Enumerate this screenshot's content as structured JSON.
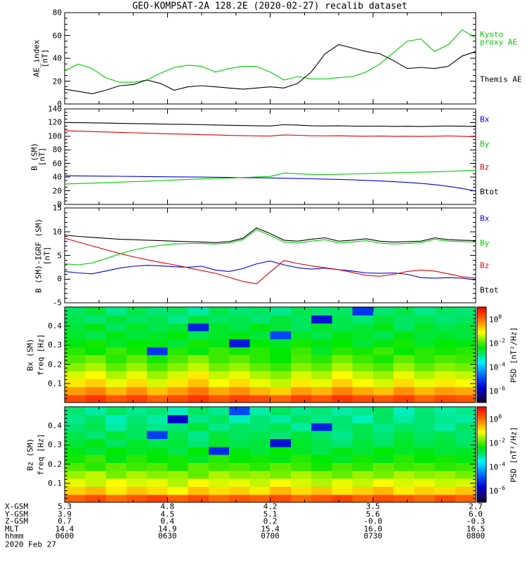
{
  "title": "GEO-KOMPSAT-2A 128.2E (2020-02-27) recalib dataset",
  "date_label": "2020 Feb 27",
  "colors": {
    "green": "#00cc00",
    "red": "#dd0000",
    "blue": "#0000dd",
    "black": "#000000",
    "background": "#ffffff"
  },
  "time_axis": {
    "tick_hours": [
      6,
      6.5,
      7,
      7.5,
      8
    ],
    "tick_labels": [
      "0600",
      "0630",
      "0700",
      "0730",
      "0800"
    ],
    "minor_step_hours": 0.16667
  },
  "bottom_axis": {
    "rows": [
      {
        "label": "X-GSM",
        "values": [
          "5.3",
          "4.8",
          "4.2",
          "3.5",
          "2.7"
        ]
      },
      {
        "label": "Y-GSM",
        "values": [
          "3.9",
          "4.5",
          "5.1",
          "5.6",
          "6.0"
        ]
      },
      {
        "label": "Z-GSM",
        "values": [
          "0.7",
          "0.4",
          "0.2",
          "-0.0",
          "-0.3"
        ]
      },
      {
        "label": "MLT",
        "values": [
          "14.4",
          "14.9",
          "15.4",
          "16.0",
          "16.5"
        ]
      }
    ],
    "hhmm_label": "hhmm",
    "hhmm_values": [
      "0600",
      "0630",
      "0700",
      "0730",
      "0800"
    ],
    "date": "2020 Feb 27"
  },
  "chart_data": [
    {
      "id": "ae-index",
      "type": "line",
      "ylabel_lines": [
        "AE_index",
        "[nT]"
      ],
      "ylim": [
        0,
        80
      ],
      "yticks": [
        0,
        20,
        40,
        60,
        80
      ],
      "yminor": 5,
      "xlim_hours": [
        6,
        8
      ],
      "series": [
        {
          "name": "Kyoto proxy AE",
          "color": "#00cc00",
          "values": [
            29,
            35,
            31,
            23,
            19,
            19,
            21,
            27,
            32,
            34,
            33,
            28,
            31,
            33,
            33,
            28,
            21,
            24,
            22,
            22,
            23,
            24,
            28,
            35,
            45,
            55,
            57,
            46,
            52,
            65,
            58
          ]
        },
        {
          "name": "Themis AE",
          "color": "#000000",
          "values": [
            13,
            11,
            9,
            12,
            16,
            17,
            21,
            18,
            12,
            15,
            16,
            15,
            14,
            13,
            14,
            15,
            14,
            18,
            28,
            44,
            52,
            49,
            46,
            44,
            38,
            31,
            32,
            31,
            33,
            42,
            46
          ]
        }
      ],
      "legend": [
        {
          "lines": [
            "Kyoto",
            "proxy AE"
          ],
          "color": "#00cc00"
        },
        {
          "lines": [
            "Themis AE"
          ],
          "color": "#000000"
        }
      ]
    },
    {
      "id": "b-sm",
      "type": "line",
      "ylabel_lines": [
        "B (SM)",
        "[nT]"
      ],
      "ylim": [
        0,
        140
      ],
      "yticks": [
        0,
        20,
        40,
        60,
        80,
        100,
        120,
        140
      ],
      "yminor": 5,
      "xlim_hours": [
        6,
        8
      ],
      "series": [
        {
          "name": "Bx",
          "color": "#0000dd",
          "values": [
            42,
            41.8,
            41.6,
            41.4,
            41.2,
            41,
            40.8,
            40.6,
            40.4,
            40.2,
            40,
            39.8,
            39.5,
            39.2,
            39,
            38.8,
            38.4,
            38,
            37.6,
            37.2,
            36.6,
            36,
            35.2,
            34.4,
            33.4,
            32.2,
            30.8,
            29,
            26.5,
            23.5,
            19.5
          ]
        },
        {
          "name": "By",
          "color": "#00cc00",
          "values": [
            30,
            30.6,
            31.2,
            31.8,
            32.6,
            33.4,
            34.2,
            35,
            35.8,
            36.6,
            37.4,
            38,
            38.6,
            39.4,
            40.2,
            41,
            46,
            45,
            44,
            43.8,
            44.2,
            44.8,
            45.2,
            45.8,
            46.2,
            46.8,
            47.2,
            47.8,
            48.4,
            49.2,
            50
          ]
        },
        {
          "name": "Bz",
          "color": "#dd0000",
          "values": [
            108,
            107.4,
            106.8,
            106.2,
            105.6,
            105,
            104.4,
            103.8,
            103.2,
            102.8,
            102.2,
            101.8,
            101.2,
            100.8,
            100.4,
            100.2,
            101.8,
            101.4,
            100.6,
            100.4,
            100.6,
            100.2,
            100,
            100.2,
            99.8,
            100,
            99.6,
            100,
            100.4,
            99.8,
            99.2
          ]
        },
        {
          "name": "Btot",
          "color": "#000000",
          "values": [
            120,
            119.8,
            119.5,
            119.2,
            118.8,
            118.5,
            118.2,
            117.8,
            117.5,
            117.2,
            116.8,
            116.4,
            116,
            115.6,
            115.2,
            115,
            116.8,
            116.2,
            115.2,
            115,
            115.2,
            114.8,
            114.6,
            114.8,
            114.4,
            114.6,
            114.2,
            114.6,
            115,
            114.6,
            114.2
          ]
        }
      ],
      "legend": [
        {
          "lines": [
            "Bx"
          ],
          "color": "#0000dd"
        },
        {
          "lines": [
            "By"
          ],
          "color": "#00cc00"
        },
        {
          "lines": [
            "Bz"
          ],
          "color": "#dd0000"
        },
        {
          "lines": [
            "Btot"
          ],
          "color": "#000000"
        }
      ]
    },
    {
      "id": "b-sm-minus-igrf",
      "type": "line",
      "ylabel_lines": [
        "B (SM)-IGRF (SM)",
        "[nT]"
      ],
      "ylim": [
        -5,
        15
      ],
      "yticks": [
        -5,
        0,
        5,
        10,
        15
      ],
      "yminor": 1,
      "xlim_hours": [
        6,
        8
      ],
      "series": [
        {
          "name": "Bx",
          "color": "#0000dd",
          "values": [
            1.6,
            1.3,
            1.1,
            1.7,
            2.3,
            2.7,
            2.9,
            2.8,
            2.6,
            2.5,
            2.7,
            1.9,
            1.6,
            2.2,
            3.2,
            3.8,
            3.0,
            2.4,
            2.1,
            2.3,
            2.0,
            1.7,
            1.3,
            1.2,
            1.3,
            1.0,
            0.3,
            0.2,
            0.3,
            0.2,
            -0.2
          ]
        },
        {
          "name": "Bz",
          "color": "#dd0000",
          "values": [
            8.6,
            7.8,
            7.0,
            6.2,
            5.4,
            4.7,
            4.1,
            3.5,
            3.0,
            2.4,
            1.8,
            1.2,
            0.4,
            -0.5,
            -1.0,
            1.5,
            3.9,
            3.3,
            2.8,
            2.4,
            2.0,
            1.4,
            0.8,
            0.6,
            1.0,
            1.6,
            1.9,
            1.7,
            1.1,
            0.5,
            0.2
          ]
        },
        {
          "name": "By",
          "color": "#00cc00",
          "values": [
            3.2,
            3.0,
            3.4,
            4.3,
            5.3,
            6.1,
            6.7,
            7.1,
            7.4,
            7.5,
            7.5,
            7.4,
            7.6,
            8.3,
            10.4,
            9.2,
            7.8,
            7.6,
            8.0,
            8.3,
            7.6,
            7.8,
            8.1,
            7.6,
            7.4,
            7.5,
            7.7,
            8.4,
            8.0,
            7.9,
            7.8
          ]
        },
        {
          "name": "Btot",
          "color": "#000000",
          "values": [
            9.3,
            9.0,
            8.8,
            8.6,
            8.4,
            8.3,
            8.2,
            8.1,
            8.0,
            7.9,
            7.8,
            7.7,
            7.9,
            8.6,
            10.8,
            9.6,
            8.2,
            8.0,
            8.4,
            8.7,
            8.0,
            8.2,
            8.5,
            8.0,
            7.8,
            7.9,
            8.0,
            8.7,
            8.3,
            8.2,
            8.1
          ]
        }
      ],
      "legend": [
        {
          "lines": [
            "Bx"
          ],
          "color": "#0000dd"
        },
        {
          "lines": [
            "By"
          ],
          "color": "#00cc00"
        },
        {
          "lines": [
            "Bz"
          ],
          "color": "#dd0000"
        },
        {
          "lines": [
            "Btot"
          ],
          "color": "#000000"
        }
      ]
    },
    {
      "id": "bx-spectrogram",
      "type": "heatmap",
      "ylabel_lines": [
        "Bx (SM)",
        "freq [Hz]"
      ],
      "ylim": [
        0,
        0.5
      ],
      "yticks": [
        0.1,
        0.2,
        0.3,
        0.4
      ],
      "yminor": 0.02,
      "xlim_hours": [
        6,
        8
      ],
      "matrix_rows_order": "bottom-to-top",
      "matrix_units": "log10 PSD [nT2/Hz]",
      "matrix": [
        [
          0.3,
          0.5,
          0.2,
          0.4,
          0.1,
          0.3,
          0.5,
          0.2,
          0.4,
          0.3,
          0.1,
          0.4,
          0.2,
          0.5,
          0.3,
          0.2,
          0.4,
          0.1,
          0.3,
          0.2
        ],
        [
          -0.4,
          -0.2,
          -0.6,
          -0.3,
          -0.7,
          -0.4,
          -0.1,
          -0.5,
          -0.3,
          -0.6,
          -0.8,
          -0.4,
          -0.6,
          -0.2,
          -0.5,
          -0.7,
          -0.3,
          -0.6,
          -0.4,
          -0.5
        ],
        [
          -1.0,
          -0.8,
          -1.2,
          -0.9,
          -1.3,
          -1.0,
          -0.7,
          -1.1,
          -0.9,
          -1.2,
          -1.4,
          -1.0,
          -1.2,
          -0.8,
          -1.1,
          -1.3,
          -0.9,
          -1.2,
          -1.0,
          -1.1
        ],
        [
          -1.3,
          -1.1,
          -1.5,
          -1.2,
          -1.6,
          -1.3,
          -1.0,
          -1.4,
          -1.2,
          -1.5,
          -1.7,
          -1.3,
          -1.5,
          -1.1,
          -1.4,
          -1.6,
          -1.2,
          -1.5,
          -1.3,
          -1.4
        ],
        [
          -1.7,
          -1.5,
          -1.9,
          -1.6,
          -2.0,
          -1.7,
          -1.4,
          -1.8,
          -1.6,
          -1.9,
          -2.1,
          -1.7,
          -1.9,
          -1.5,
          -1.8,
          -2.0,
          -1.6,
          -1.9,
          -1.7,
          -1.8
        ],
        [
          -2.0,
          -1.8,
          -2.2,
          -1.9,
          -2.3,
          -2.0,
          -1.7,
          -2.1,
          -1.9,
          -2.2,
          -2.4,
          -2.0,
          -2.2,
          -1.8,
          -2.1,
          -2.3,
          -1.9,
          -2.2,
          -2.0,
          -2.1
        ],
        [
          -2.2,
          -2.4,
          -2.1,
          -2.3,
          -5.2,
          -2.2,
          -2.5,
          -2.1,
          -2.3,
          -2.2,
          -2.4,
          -2.1,
          -2.6,
          -2.2,
          -2.3,
          -2.1,
          -2.4,
          -2.2,
          -2.3,
          -2.2
        ],
        [
          -2.5,
          -2.3,
          -2.6,
          -2.4,
          -2.5,
          -2.7,
          -2.3,
          -2.5,
          -5.5,
          -2.4,
          -2.6,
          -2.3,
          -2.5,
          -2.4,
          -2.7,
          -2.5,
          -2.3,
          -2.6,
          -2.4,
          -2.5
        ],
        [
          -2.6,
          -2.8,
          -2.5,
          -2.7,
          -2.6,
          -2.4,
          -2.8,
          -2.6,
          -2.5,
          -2.7,
          -5.0,
          -2.6,
          -2.8,
          -2.5,
          -2.6,
          -2.8,
          -2.5,
          -2.7,
          -2.6,
          -2.7
        ],
        [
          -2.7,
          -2.5,
          -2.9,
          -2.6,
          -2.8,
          -2.7,
          -5.4,
          -2.6,
          -2.8,
          -2.5,
          -2.7,
          -2.9,
          -2.6,
          -2.8,
          -2.7,
          -2.5,
          -2.9,
          -2.6,
          -2.8,
          -2.7
        ],
        [
          -2.8,
          -3.0,
          -2.7,
          -2.9,
          -2.8,
          -3.1,
          -2.7,
          -2.9,
          -2.8,
          -3.0,
          -2.7,
          -2.9,
          -5.6,
          -2.8,
          -3.0,
          -2.7,
          -2.9,
          -2.8,
          -3.0,
          -2.9
        ],
        [
          -2.9,
          -2.7,
          -3.1,
          -2.8,
          -3.0,
          -2.9,
          -3.2,
          -2.8,
          -3.0,
          -2.9,
          -3.1,
          -2.8,
          -3.0,
          -2.9,
          -5.2,
          -3.0,
          -2.8,
          -3.1,
          -2.9,
          -3.0
        ]
      ],
      "colorbar": {
        "label": "PSD [nT²/Hz]",
        "tick_exponents": [
          0,
          -2,
          -4,
          -6
        ],
        "vmax_log10": 1,
        "vmin_log10": -7
      }
    },
    {
      "id": "bz-spectrogram",
      "type": "heatmap",
      "ylabel_lines": [
        "Bz (SM)",
        "freq [Hz]"
      ],
      "ylim": [
        0,
        0.5
      ],
      "yticks": [
        0.1,
        0.2,
        0.3,
        0.4
      ],
      "yminor": 0.02,
      "xlim_hours": [
        6,
        8
      ],
      "matrix_rows_order": "bottom-to-top",
      "matrix_units": "log10 PSD [nT2/Hz]",
      "matrix": [
        [
          0.1,
          0.3,
          0.0,
          0.2,
          0.4,
          0.1,
          0.3,
          0.0,
          0.2,
          0.1,
          0.3,
          0.0,
          0.2,
          0.4,
          0.1,
          0.3,
          0.2,
          0.0,
          0.3,
          0.1
        ],
        [
          -0.8,
          -0.6,
          -1.0,
          -0.7,
          -0.9,
          -1.1,
          -0.7,
          -0.9,
          -0.8,
          -1.0,
          -0.6,
          -0.9,
          -0.7,
          -1.0,
          -0.8,
          -0.6,
          -1.0,
          -0.8,
          -0.9,
          -0.7
        ],
        [
          -1.2,
          -1.4,
          -1.1,
          -1.3,
          -1.2,
          -1.5,
          -1.1,
          -1.3,
          -1.2,
          -1.4,
          -1.1,
          -1.3,
          -1.5,
          -1.2,
          -1.4,
          -1.1,
          -1.3,
          -1.2,
          -1.4,
          -1.3
        ],
        [
          -1.6,
          -1.4,
          -1.8,
          -1.5,
          -1.7,
          -1.6,
          -1.9,
          -1.5,
          -1.7,
          -1.6,
          -1.8,
          -1.5,
          -1.7,
          -1.9,
          -1.6,
          -1.8,
          -1.5,
          -1.7,
          -1.6,
          -1.8
        ],
        [
          -2.0,
          -2.2,
          -1.9,
          -2.1,
          -2.0,
          -2.3,
          -1.9,
          -2.1,
          -2.0,
          -2.2,
          -1.9,
          -2.1,
          -2.3,
          -2.0,
          -2.2,
          -1.9,
          -2.1,
          -2.0,
          -2.2,
          -2.1
        ],
        [
          -2.3,
          -2.1,
          -2.5,
          -2.2,
          -2.4,
          -2.3,
          -2.6,
          -2.2,
          -2.4,
          -2.3,
          -2.5,
          -2.2,
          -2.4,
          -2.6,
          -2.3,
          -2.5,
          -2.2,
          -2.4,
          -2.3,
          -2.5
        ],
        [
          -2.5,
          -2.7,
          -2.4,
          -2.6,
          -2.5,
          -2.8,
          -2.4,
          -5.3,
          -2.5,
          -2.7,
          -2.4,
          -2.6,
          -2.8,
          -2.5,
          -2.7,
          -2.4,
          -2.6,
          -2.5,
          -2.7,
          -2.6
        ],
        [
          -2.7,
          -2.5,
          -2.9,
          -2.6,
          -2.8,
          -2.7,
          -3.0,
          -2.6,
          -2.8,
          -2.7,
          -5.6,
          -2.6,
          -2.8,
          -3.0,
          -2.7,
          -2.9,
          -2.6,
          -2.8,
          -2.7,
          -2.9
        ],
        [
          -2.8,
          -3.0,
          -2.7,
          -2.9,
          -5.1,
          -2.8,
          -3.1,
          -2.7,
          -2.9,
          -2.8,
          -3.0,
          -2.7,
          -2.9,
          -3.1,
          -2.8,
          -3.0,
          -2.7,
          -2.9,
          -2.8,
          -3.0
        ],
        [
          -3.0,
          -2.8,
          -3.2,
          -2.9,
          -3.1,
          -3.0,
          -2.7,
          -3.1,
          -2.9,
          -3.0,
          -2.8,
          -3.2,
          -5.4,
          -3.0,
          -2.8,
          -3.1,
          -2.9,
          -3.0,
          -3.2,
          -2.9
        ],
        [
          -3.1,
          -2.9,
          -3.3,
          -3.0,
          -3.2,
          -5.8,
          -3.1,
          -2.9,
          -3.3,
          -3.0,
          -3.2,
          -2.9,
          -3.1,
          -3.0,
          -3.3,
          -2.9,
          -3.2,
          -3.0,
          -3.1,
          -3.2
        ],
        [
          -3.0,
          -3.2,
          -2.9,
          -3.1,
          -3.0,
          -3.3,
          -2.9,
          -3.1,
          -5.0,
          -3.2,
          -2.9,
          -3.1,
          -3.0,
          -3.2,
          -3.1,
          -2.9,
          -3.3,
          -3.0,
          -3.2,
          -3.1
        ]
      ],
      "colorbar": {
        "label": "PSD [nT²/Hz]",
        "tick_exponents": [
          0,
          -2,
          -4,
          -6
        ],
        "vmax_log10": 1,
        "vmin_log10": -7
      }
    }
  ]
}
